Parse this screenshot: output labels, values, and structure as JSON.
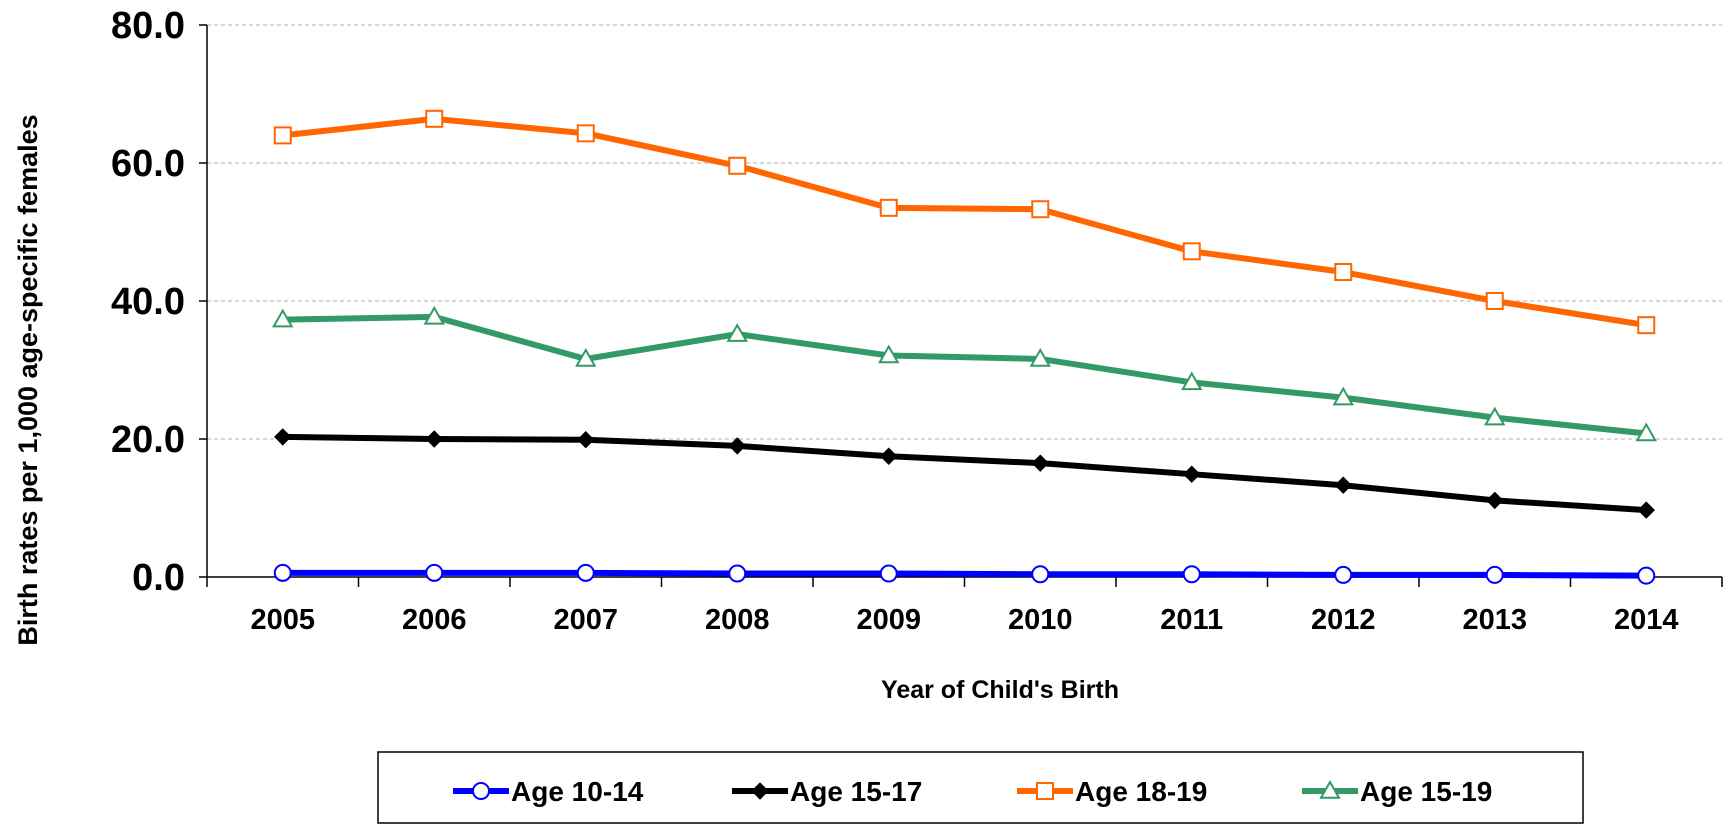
{
  "chart_data": {
    "type": "line",
    "title": "",
    "xlabel": "Year of Child's Birth",
    "ylabel": "Birth rates per 1,000 age-specific females",
    "categories": [
      "2005",
      "2006",
      "2007",
      "2008",
      "2009",
      "2010",
      "2011",
      "2012",
      "2013",
      "2014"
    ],
    "ylim": [
      0,
      80
    ],
    "yticks": [
      0,
      20,
      40,
      60,
      80
    ],
    "ytick_labels": [
      "0.0",
      "20.0",
      "40.0",
      "60.0",
      "80.0"
    ],
    "grid": "horizontal dashed",
    "legend_position": "bottom",
    "series": [
      {
        "name": "Age 10-14",
        "color": "#0000FF",
        "marker": "circle-open",
        "values": [
          0.6,
          0.6,
          0.6,
          0.5,
          0.5,
          0.4,
          0.4,
          0.3,
          0.3,
          0.2
        ]
      },
      {
        "name": "Age 15-17",
        "color": "#000000",
        "marker": "diamond-filled",
        "values": [
          20.3,
          20.0,
          19.9,
          19.0,
          17.5,
          16.5,
          14.9,
          13.3,
          11.1,
          9.7
        ]
      },
      {
        "name": "Age 18-19",
        "color": "#FF6600",
        "marker": "square-open",
        "values": [
          64.0,
          66.4,
          64.3,
          59.6,
          53.5,
          53.3,
          47.2,
          44.2,
          40.0,
          36.5
        ]
      },
      {
        "name": "Age 15-19",
        "color": "#339966",
        "marker": "triangle-open",
        "values": [
          37.3,
          37.7,
          31.6,
          35.2,
          32.1,
          31.6,
          28.2,
          26.0,
          23.1,
          20.8
        ]
      }
    ]
  }
}
